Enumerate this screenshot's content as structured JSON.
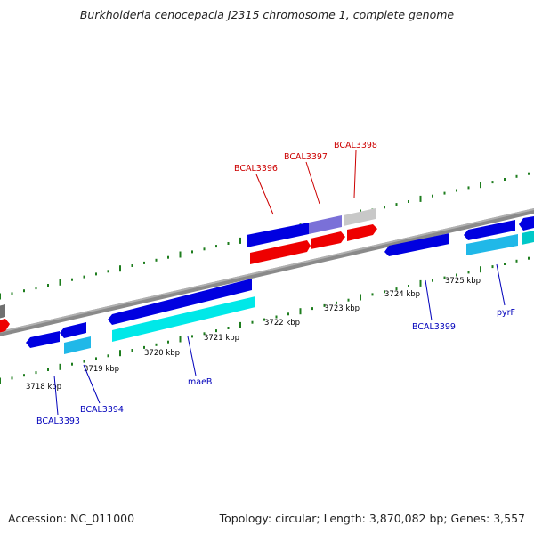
{
  "header": {
    "title": "Burkholderia cenocepacia J2315 chromosome 1, complete genome"
  },
  "footer": {
    "accession": "Accession: NC_011000",
    "summary": "Topology: circular; Length: 3,870,082 bp; Genes: 3,557"
  },
  "colors": {
    "backbone": "#808080",
    "tick": "#1e7d1e",
    "forward_gene": "#0000e0",
    "forward_cds": "#ff0000",
    "reverse_gene": "#1010e0",
    "reverse_cds": "#00e8e8",
    "rna_gene": "#7a70d8",
    "pseudo": "#c8c8c8",
    "forward_label": "#cc0000",
    "reverse_label": "#0000bb",
    "scale_label": "#000000"
  },
  "scale": {
    "unit": "kbp",
    "labels": [
      "3718 kbp",
      "3719 kbp",
      "3720 kbp",
      "3721 kbp",
      "3722 kbp",
      "3723 kbp",
      "3724 kbp",
      "3725 kbp"
    ]
  },
  "genes_forward": [
    {
      "name": "BCAL3396"
    },
    {
      "name": "BCAL3397"
    },
    {
      "name": "BCAL3398"
    }
  ],
  "genes_reverse": [
    {
      "name": "BCAL3393"
    },
    {
      "name": "BCAL3394"
    },
    {
      "name": "maeB"
    },
    {
      "name": "BCAL3399"
    },
    {
      "name": "pyrF"
    }
  ]
}
